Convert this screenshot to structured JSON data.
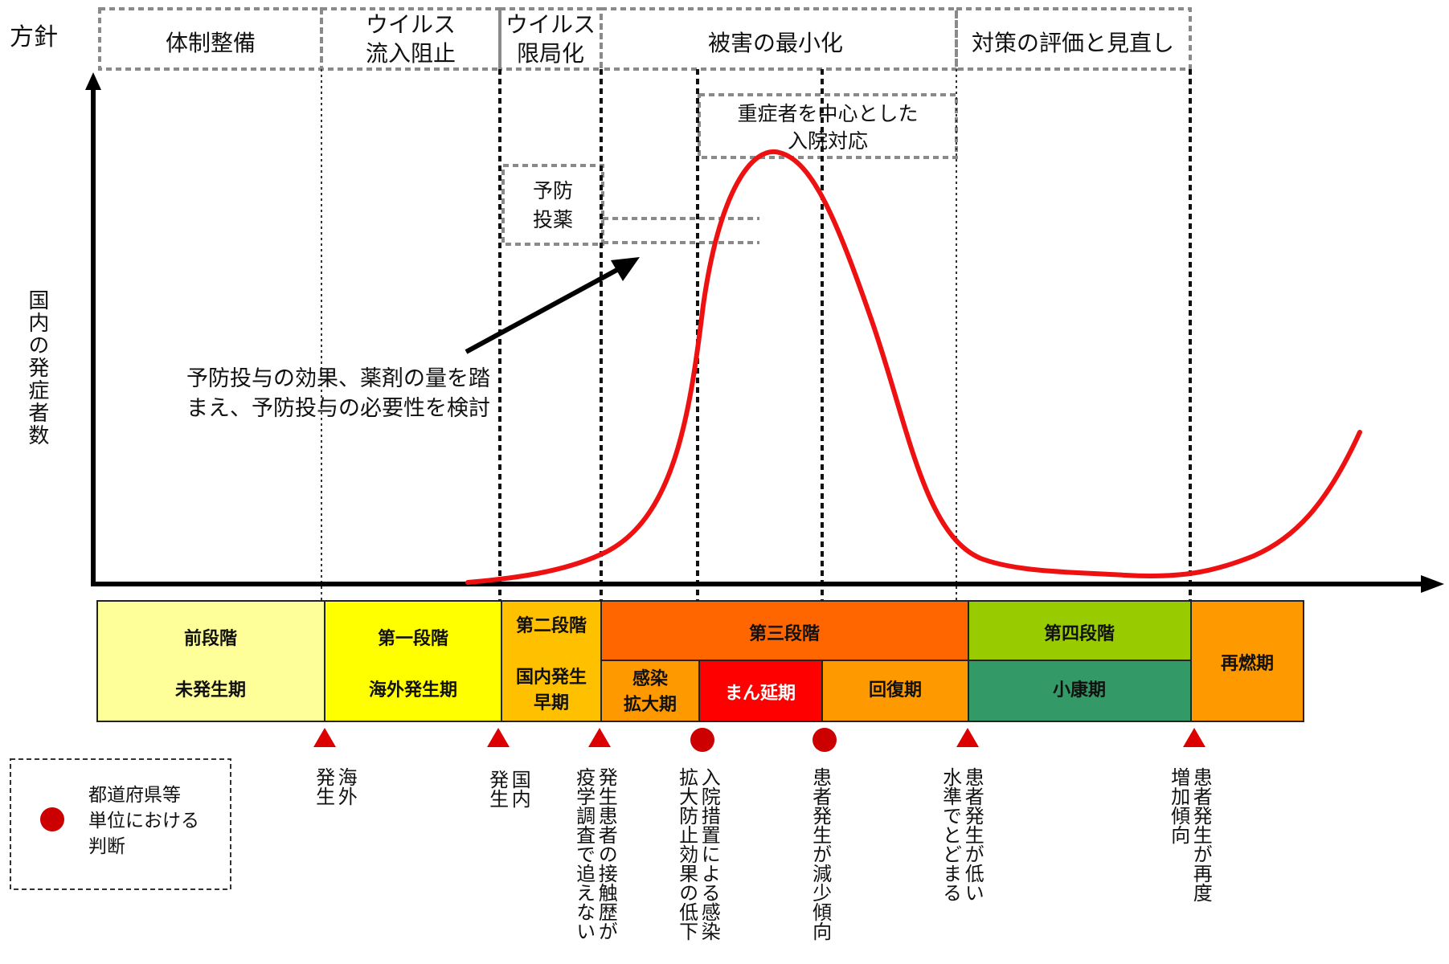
{
  "policy_label": "方針",
  "policies": [
    {
      "text": "体制整備"
    },
    {
      "text": "ウイルス\n流入阻止"
    },
    {
      "text": "ウイルス\n限局化"
    },
    {
      "text": "被害の最小化"
    },
    {
      "text": "対策の評価と見直し"
    }
  ],
  "sub_policies": {
    "hospital": "重症者を中心とした\n入院対応",
    "prophylaxis": "予防\n投薬"
  },
  "annotation": "予防投与の効果、薬剤の量を踏\nまえ、予防投与の必要性を検討",
  "y_axis_label": "国内の発症者数",
  "stages": {
    "pre": {
      "top": "前段階",
      "bottom": "未発生期",
      "color": "#ffff99"
    },
    "first": {
      "top": "第一段階",
      "bottom": "海外発生期",
      "color": "#ffff00"
    },
    "second": {
      "top": "第二段階",
      "bottom": "国内発生\n早期",
      "color": "#ffc000"
    },
    "third": {
      "top": "第三段階",
      "color": "#ff6600"
    },
    "third_sub": [
      {
        "text": "感染\n拡大期",
        "color": "#ff9900"
      },
      {
        "text": "まん延期",
        "color": "#ff0000"
      },
      {
        "text": "回復期",
        "color": "#ff9900"
      }
    ],
    "fourth": {
      "top": "第四段階",
      "bottom": "小康期",
      "top_color": "#99cc00",
      "bottom_color": "#339966"
    },
    "resurgence": {
      "text": "再燃期",
      "color": "#ff9900"
    }
  },
  "triggers": [
    {
      "marker": "triangle",
      "label": "海外\n発生"
    },
    {
      "marker": "triangle",
      "label": "国内\n発生"
    },
    {
      "marker": "triangle",
      "label": "発生患者の接触歴が\n疫学調査で追えない"
    },
    {
      "marker": "circle",
      "label": "入院措置による感染\n拡大防止効果の低下"
    },
    {
      "marker": "circle",
      "label": "患者発生が減少傾向"
    },
    {
      "marker": "triangle",
      "label": "患者発生が低い\n水準でとどまる"
    },
    {
      "marker": "triangle",
      "label": "患者発生が再度\n増加傾向"
    }
  ],
  "legend": {
    "text": "都道府県等\n単位における\n判断",
    "marker_color": "#cc0000"
  },
  "colors": {
    "curve": "#ee1111",
    "triangle": "#dd0000",
    "circle": "#cc0000"
  }
}
